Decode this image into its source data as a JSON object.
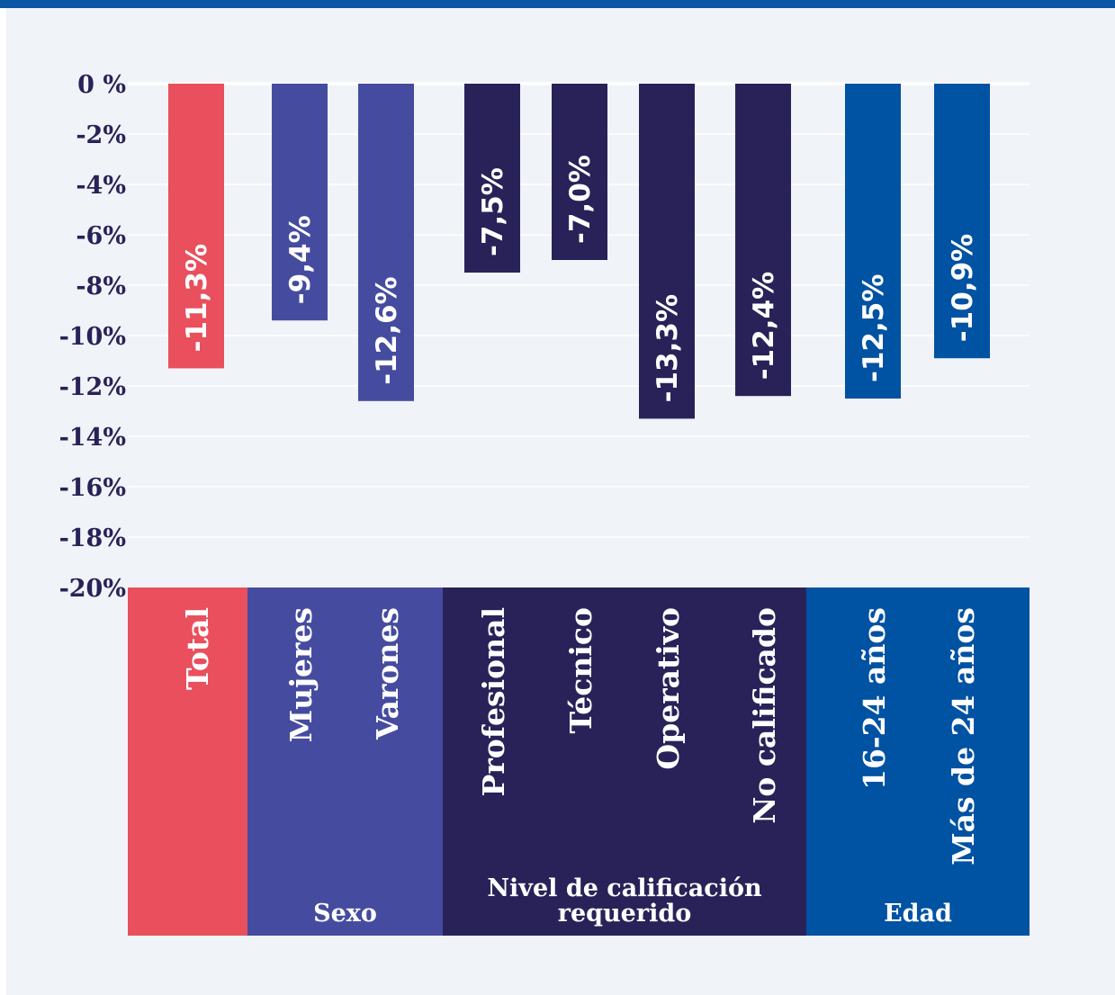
{
  "chart_data": {
    "type": "bar",
    "title": "",
    "xlabel": "",
    "ylabel": "",
    "ylim": [
      -20,
      0
    ],
    "yticks": [
      0,
      -2,
      -4,
      -6,
      -8,
      -10,
      -12,
      -14,
      -16,
      -18,
      -20
    ],
    "ytick_labels": [
      "0 %",
      "-2%",
      "-4%",
      "-6%",
      "-8%",
      "-10%",
      "-12%",
      "-14%",
      "-16%",
      "-18%",
      "-20%"
    ],
    "grid": true,
    "legend": "none",
    "categories": [
      "Total",
      "Mujeres",
      "Varones",
      "Profesional",
      "Técnico",
      "Operativo",
      "No calificado",
      "16-24 años",
      "Más de 24 años"
    ],
    "values": [
      -11.3,
      -9.4,
      -12.6,
      -7.5,
      -7.0,
      -13.3,
      -12.4,
      -12.5,
      -10.9
    ],
    "data_labels": [
      "-11,3%",
      "-9,4%",
      "-12,6%",
      "-7,5%",
      "-7,0%",
      "-13,3%",
      "-12,4%",
      "-12,5%",
      "-10,9%"
    ],
    "bar_colors": [
      "#e94f5d",
      "#454c9f",
      "#454c9f",
      "#282259",
      "#282259",
      "#282259",
      "#282259",
      "#0052a3",
      "#0052a3"
    ],
    "groups": [
      {
        "label": "",
        "members": [
          0
        ],
        "color": "#e94f5d"
      },
      {
        "label": "Sexo",
        "members": [
          1,
          2
        ],
        "color": "#454c9f"
      },
      {
        "label": "Nivel de calificación requerido",
        "members": [
          3,
          4,
          5,
          6
        ],
        "color": "#282259"
      },
      {
        "label": "Edad",
        "members": [
          7,
          8
        ],
        "color": "#0052a3"
      }
    ]
  }
}
